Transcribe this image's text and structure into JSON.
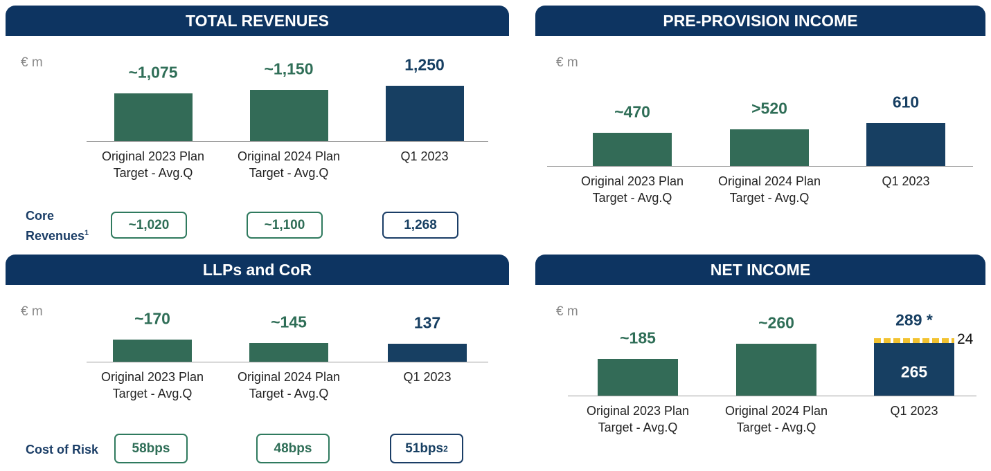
{
  "chart_data": [
    {
      "type": "bar",
      "title": "TOTAL REVENUES",
      "unit": "€ m",
      "categories": [
        "Original 2023 Plan Target - Avg.Q",
        "Original 2024 Plan Target - Avg.Q",
        "Q1 2023"
      ],
      "series": [
        {
          "values": [
            1075,
            1150,
            1250
          ],
          "value_labels": [
            "~1,075",
            "~1,150",
            "1,250"
          ],
          "colors": [
            "#336b57",
            "#336b57",
            "#173f62"
          ]
        }
      ],
      "footer": {
        "label": "Core Revenues",
        "label_note": "1",
        "values": [
          1020,
          1100,
          1268
        ],
        "value_labels": [
          "~1,020",
          "~1,100",
          "1,268"
        ],
        "notes": [
          null,
          null,
          null
        ]
      }
    },
    {
      "type": "bar",
      "title": "PRE-PROVISION INCOME",
      "unit": "€ m",
      "categories": [
        "Original 2023 Plan Target - Avg.Q",
        "Original 2024 Plan Target - Avg.Q",
        "Q1 2023"
      ],
      "series": [
        {
          "values": [
            470,
            520,
            610
          ],
          "value_labels": [
            "~470",
            ">520",
            "610"
          ],
          "colors": [
            "#336b57",
            "#336b57",
            "#173f62"
          ]
        }
      ]
    },
    {
      "type": "bar",
      "title": "LLPs and CoR",
      "unit": "€ m",
      "categories": [
        "Original 2023 Plan Target - Avg.Q",
        "Original 2024 Plan Target - Avg.Q",
        "Q1 2023"
      ],
      "series": [
        {
          "values": [
            170,
            145,
            137
          ],
          "value_labels": [
            "~170",
            "~145",
            "137"
          ],
          "colors": [
            "#336b57",
            "#336b57",
            "#173f62"
          ]
        }
      ],
      "footer": {
        "label": "Cost of Risk",
        "label_note": null,
        "values": [
          58,
          48,
          51
        ],
        "value_labels": [
          "58bps",
          "48bps",
          "51bps"
        ],
        "notes": [
          null,
          null,
          "2"
        ]
      }
    },
    {
      "type": "stacked_bar",
      "title": "NET INCOME",
      "unit": "€ m",
      "categories": [
        "Original 2023 Plan Target - Avg.Q",
        "Original 2024 Plan Target - Avg.Q",
        "Q1 2023"
      ],
      "series": [
        {
          "values": [
            185,
            260,
            265
          ],
          "value_labels": [
            "~185",
            "~260",
            "265"
          ],
          "colors": [
            "#336b57",
            "#336b57",
            "#173f62"
          ]
        },
        {
          "values": [
            null,
            null,
            24
          ],
          "value_labels": [
            null,
            null,
            "24"
          ],
          "colors": [
            null,
            null,
            "#f2c230"
          ]
        }
      ],
      "totals": [
        null,
        null,
        289
      ],
      "total_labels": [
        null,
        null,
        "289 *"
      ]
    }
  ]
}
